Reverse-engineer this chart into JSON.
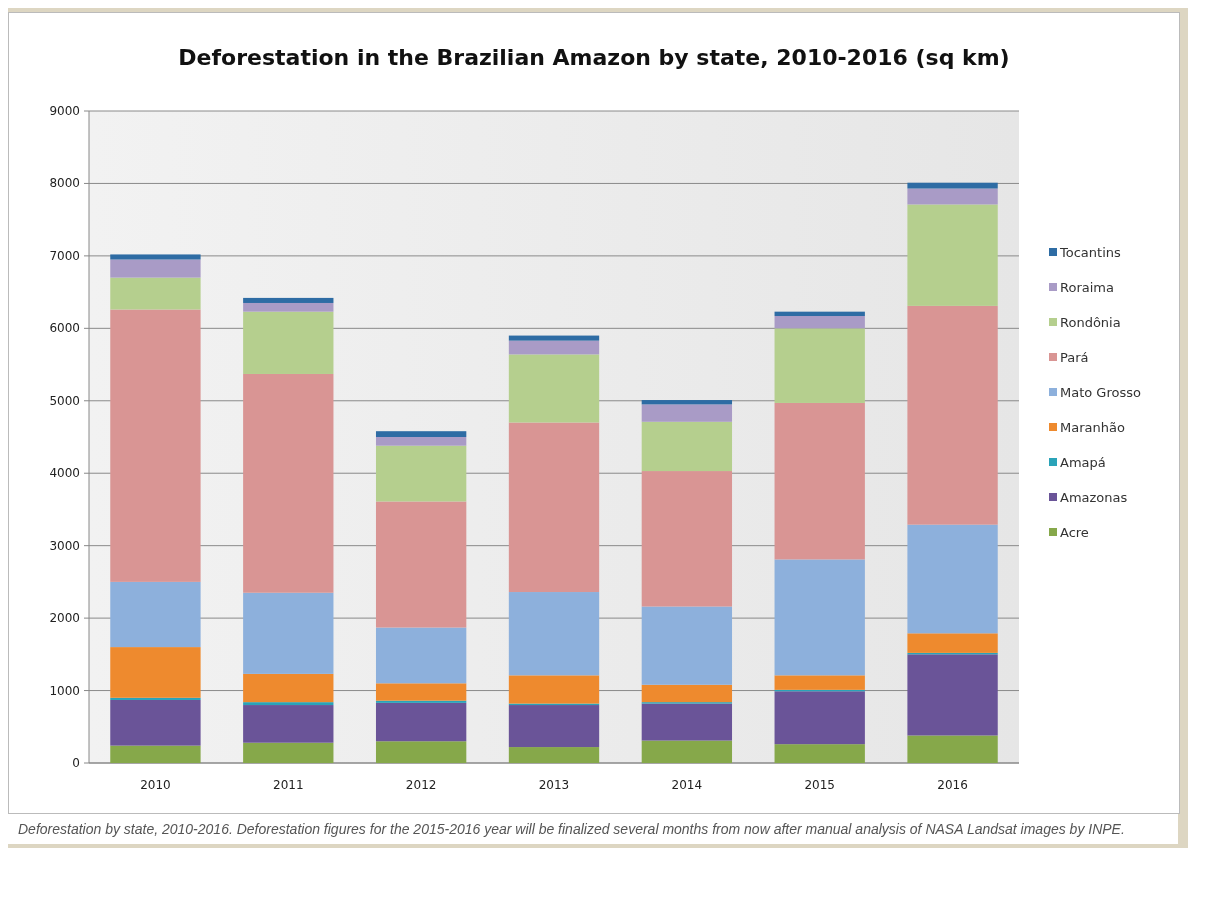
{
  "chart_data": {
    "type": "bar",
    "title": "Deforestation in the Brazilian Amazon by state, 2010-2016 (sq km)",
    "categories": [
      "2010",
      "2011",
      "2012",
      "2013",
      "2014",
      "2015",
      "2016"
    ],
    "stacked": true,
    "series": [
      {
        "name": "Acre",
        "color": "#86a84a",
        "values": [
          240,
          280,
          300,
          220,
          310,
          260,
          380
        ]
      },
      {
        "name": "Amazonas",
        "color": "#6a5498",
        "values": [
          630,
          520,
          530,
          580,
          510,
          730,
          1120
        ]
      },
      {
        "name": "Amapá",
        "color": "#2aa3b8",
        "values": [
          30,
          40,
          30,
          20,
          20,
          20,
          20
        ]
      },
      {
        "name": "Maranhão",
        "color": "#ee8a2e",
        "values": [
          700,
          390,
          240,
          390,
          240,
          200,
          270
        ]
      },
      {
        "name": "Mato Grosso",
        "color": "#8db0dc",
        "values": [
          900,
          1120,
          770,
          1150,
          1080,
          1600,
          1500
        ]
      },
      {
        "name": "Pará",
        "color": "#d99594",
        "values": [
          3760,
          3020,
          1740,
          2340,
          1870,
          2160,
          3020
        ]
      },
      {
        "name": "Rondônia",
        "color": "#b5cf8e",
        "values": [
          440,
          860,
          770,
          940,
          680,
          1030,
          1400
        ]
      },
      {
        "name": "Roraima",
        "color": "#a99bc6",
        "values": [
          250,
          120,
          120,
          190,
          240,
          170,
          220
        ]
      },
      {
        "name": "Tocantins",
        "color": "#2e6ca4",
        "values": [
          70,
          70,
          80,
          70,
          60,
          60,
          80
        ]
      }
    ],
    "ylim": [
      0,
      9000
    ],
    "yticks": [
      0,
      1000,
      2000,
      3000,
      4000,
      5000,
      6000,
      7000,
      8000,
      9000
    ],
    "grid": "y",
    "legend": "right",
    "annotations": [
      "Deforestation by state, 2010-2016. Deforestation figures for the 2015-2016 year will be finalized several months from now after manual analysis of NASA Landsat images by INPE."
    ]
  }
}
